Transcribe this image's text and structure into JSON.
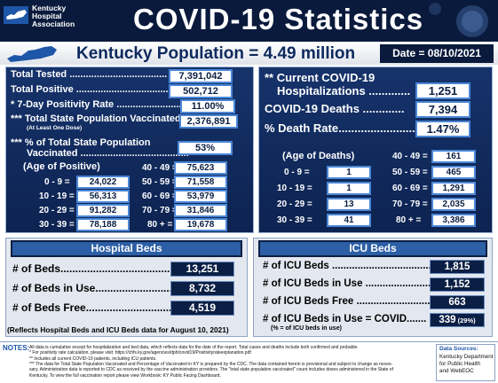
{
  "header": {
    "org": [
      "Kentucky",
      "Hospital",
      "Association"
    ],
    "title": "COVID-19 Statistics"
  },
  "population": {
    "label": "Kentucky Population = 4.49 million",
    "date": "Date = 08/10/2021"
  },
  "positive": {
    "stats": [
      {
        "label": "Total Tested ....................................",
        "value": "7,391,042"
      },
      {
        "label": "Total Positive ..................................",
        "value": "502,712"
      },
      {
        "label": "* 7-Day Positivity Rate .........................",
        "value": "11.00%"
      },
      {
        "label": "*** Total State Population Vaccinated ..",
        "note": "(At Least One Dose)",
        "value": "2,376,891"
      },
      {
        "label": "*** % of Total State Population",
        "label2": "Vaccinated ........................................",
        "value": "53%"
      }
    ],
    "age_title": "(Age of Positive)",
    "ages": [
      {
        "age": "0 - 9 =",
        "value": "24,022"
      },
      {
        "age": "10 - 19 =",
        "value": "56,313"
      },
      {
        "age": "20 - 29 =",
        "value": "91,282"
      },
      {
        "age": "30 - 39 =",
        "value": "78,188"
      },
      {
        "age": "40 - 49 =",
        "value": "75,623"
      },
      {
        "age": "50 - 59 =",
        "value": "71,558"
      },
      {
        "age": "60 - 69 =",
        "value": "53,979"
      },
      {
        "age": "70 - 79 =",
        "value": "31,846"
      },
      {
        "age": "80 + =",
        "value": "19,678"
      }
    ]
  },
  "deaths": {
    "stats": [
      {
        "label": "** Current COVID-19",
        "label2": "Hospitalizations .............",
        "value": "1,251"
      },
      {
        "label": "COVID-19 Deaths .............",
        "value": "7,394"
      },
      {
        "label": "% Death Rate........................",
        "value": "1.47%"
      }
    ],
    "age_title": "(Age of Deaths)",
    "ages": [
      {
        "age": "0 - 9 =",
        "value": "1"
      },
      {
        "age": "10 - 19 =",
        "value": "1"
      },
      {
        "age": "20 - 29 =",
        "value": "13"
      },
      {
        "age": "30 - 39 =",
        "value": "41"
      },
      {
        "age": "40 - 49 =",
        "value": "161"
      },
      {
        "age": "50 - 59 =",
        "value": "465"
      },
      {
        "age": "60 - 69 =",
        "value": "1,291"
      },
      {
        "age": "70 - 79 =",
        "value": "2,035"
      },
      {
        "age": "80 + =",
        "value": "3,386"
      }
    ]
  },
  "hospital_beds": {
    "title": "Hospital Beds",
    "rows": [
      {
        "label": "# of Beds.........................................",
        "value": "13,251"
      },
      {
        "label": "# of Beds in Use..............................",
        "value": "8,732"
      },
      {
        "label": "# of Beds Free.................................",
        "value": "4,519"
      }
    ],
    "footnote": "(Reflects Hospital Beds and ICU Beds data for August 10, 2021)"
  },
  "icu_beds": {
    "title": "ICU Beds",
    "rows": [
      {
        "label": "# of ICU Beds ....................................",
        "value": "1,815"
      },
      {
        "label": "# of ICU Beds in Use .........................",
        "value": "1,152"
      },
      {
        "label": "# of ICU Beds Free ...........................",
        "value": "663"
      },
      {
        "label": "# of ICU Beds in Use = COVID.......",
        "value": "339",
        "suffix": "(29%)"
      }
    ],
    "subnote": "(% = of ICU beds in use)"
  },
  "notes": {
    "label": "NOTES:",
    "lines": [
      "All data is cumulative except for hospitalization and bed data, which reflects data for the date of the report. Total cases and deaths include both confirmed and probable.",
      "* For positivity rate calculation, please visit: https://chfs.ky.gov/agencies/dph/covid19/Positivityrateexplanation.pdf",
      "** Includes all current COVID-19 patients, including ICU patients.",
      "*** The data for Total State Population Vaccinated and Percentage of Vaccinated in KY is prepared by the CDC.  The data contained herein is provisional and subject to change as neces-",
      "sary.  Administration data is reported to CDC as received by the vaccine administration providers.  The \"total state population vaccinated\" count includes doses administered in the State of",
      "Kentucky. To view the full vaccination report please view Workbook: KY Public Facing Dashboard."
    ]
  },
  "sources": {
    "label": "Data Sources:",
    "lines": [
      "Kentucky Department",
      "for Public Health",
      "and WebEOC"
    ]
  }
}
